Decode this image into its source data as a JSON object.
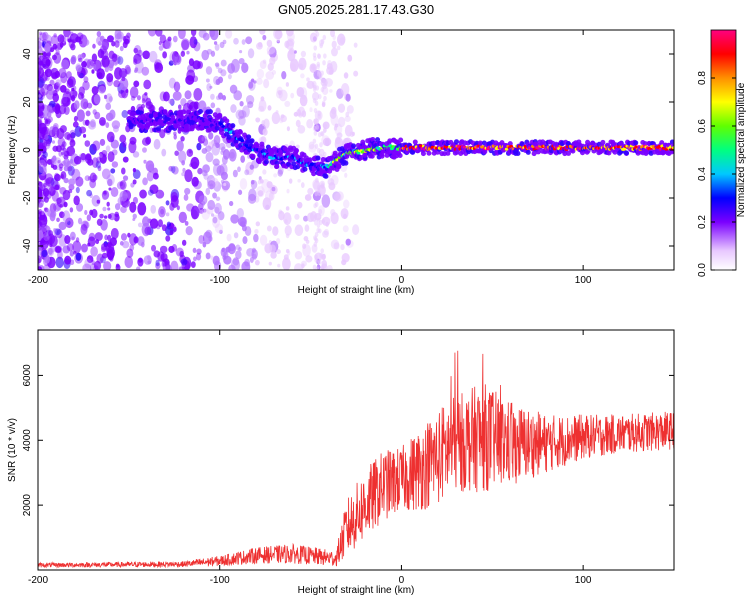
{
  "title": "GN05.2025.281.17.43.G30",
  "chart_data": [
    {
      "type": "heatmap",
      "xlabel": "Height of straight line (km)",
      "ylabel": "Frequency (Hz)",
      "xlim": [
        -200,
        150
      ],
      "ylim": [
        -50,
        50
      ],
      "xticks": [
        -200,
        -100,
        0,
        100
      ],
      "yticks": [
        -40,
        -20,
        0,
        20,
        40
      ],
      "colorbar": {
        "label": "Normalized spectral amplitude",
        "range": [
          0,
          1
        ],
        "ticks": [
          "0.0",
          "0.2",
          "0.4",
          "0.6",
          "0.8"
        ]
      },
      "ridge_frequency": [
        {
          "x": -140,
          "y": 12
        },
        {
          "x": -120,
          "y": 12
        },
        {
          "x": -110,
          "y": 13
        },
        {
          "x": -100,
          "y": 11
        },
        {
          "x": -92,
          "y": 6
        },
        {
          "x": -85,
          "y": 2
        },
        {
          "x": -78,
          "y": -1
        },
        {
          "x": -70,
          "y": -3
        },
        {
          "x": -60,
          "y": -3
        },
        {
          "x": -52,
          "y": -6
        },
        {
          "x": -45,
          "y": -7
        },
        {
          "x": -40,
          "y": -7
        },
        {
          "x": -32,
          "y": -2
        },
        {
          "x": -20,
          "y": 0
        },
        {
          "x": -10,
          "y": 1
        },
        {
          "x": 0,
          "y": 1
        },
        {
          "x": 20,
          "y": 1
        },
        {
          "x": 50,
          "y": 1
        },
        {
          "x": 100,
          "y": 1
        },
        {
          "x": 150,
          "y": 1
        }
      ]
    },
    {
      "type": "line",
      "xlabel": "Height of straight line (km)",
      "ylabel": "SNR (10 * v/v)",
      "xlim": [
        -200,
        150
      ],
      "ylim": [
        0,
        7400
      ],
      "xticks": [
        -200,
        -100,
        0,
        100
      ],
      "yticks": [
        2000,
        4000,
        6000
      ],
      "series": [
        {
          "name": "SNR",
          "color": "#ee3030",
          "envelope": [
            {
              "x": -200,
              "mean": 150,
              "amp": 70
            },
            {
              "x": -120,
              "mean": 180,
              "amp": 90
            },
            {
              "x": -100,
              "mean": 280,
              "amp": 160
            },
            {
              "x": -80,
              "mean": 450,
              "amp": 250
            },
            {
              "x": -60,
              "mean": 500,
              "amp": 300
            },
            {
              "x": -36,
              "mean": 350,
              "amp": 250
            },
            {
              "x": -30,
              "mean": 1300,
              "amp": 900
            },
            {
              "x": -20,
              "mean": 2000,
              "amp": 1100
            },
            {
              "x": -10,
              "mean": 2600,
              "amp": 1100
            },
            {
              "x": 0,
              "mean": 2800,
              "amp": 1000
            },
            {
              "x": 10,
              "mean": 3100,
              "amp": 1300
            },
            {
              "x": 20,
              "mean": 3500,
              "amp": 1500
            },
            {
              "x": 30,
              "mean": 3900,
              "amp": 1500
            },
            {
              "x": 45,
              "mean": 4100,
              "amp": 1700
            },
            {
              "x": 60,
              "mean": 3900,
              "amp": 1300
            },
            {
              "x": 80,
              "mean": 3900,
              "amp": 900
            },
            {
              "x": 100,
              "mean": 4100,
              "amp": 700
            },
            {
              "x": 120,
              "mean": 4200,
              "amp": 600
            },
            {
              "x": 150,
              "mean": 4300,
              "amp": 600
            }
          ]
        }
      ]
    }
  ]
}
